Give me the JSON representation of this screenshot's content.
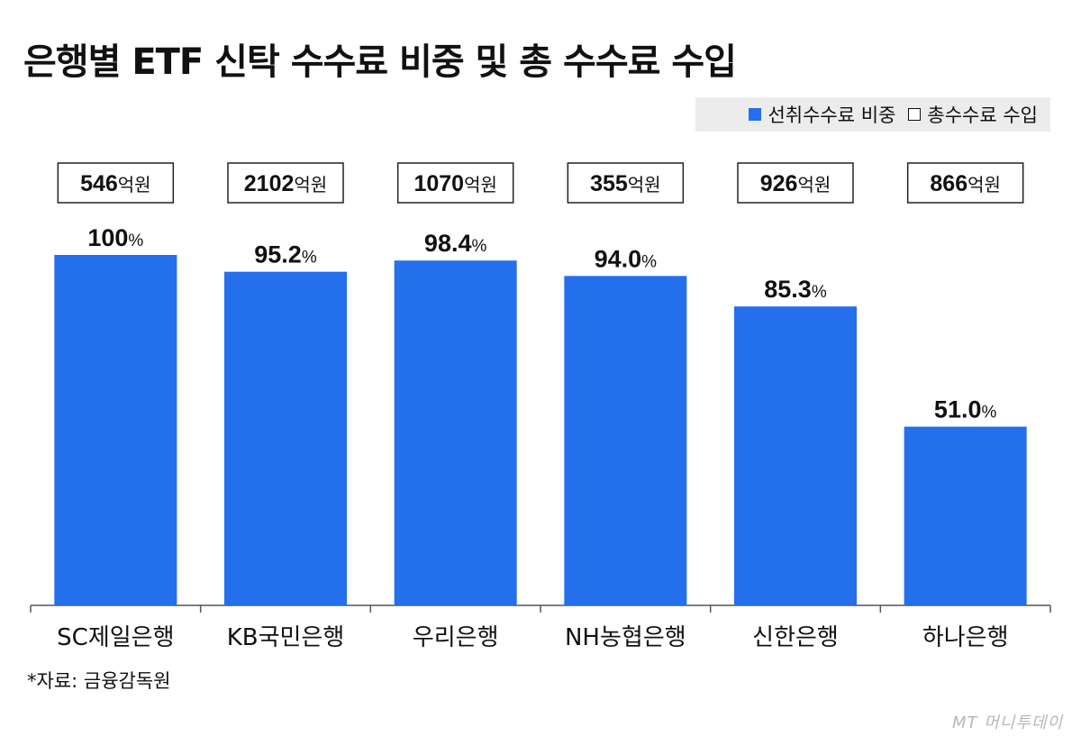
{
  "title": "은행별 ETF 신탁 수수료 비중 및 총 수수료 수입",
  "legend": [
    {
      "label": "선취수수료 비중",
      "style": "filled",
      "color": "#236fec"
    },
    {
      "label": "총수수료 수입",
      "style": "outline",
      "color": "#ffffff"
    }
  ],
  "source": "*자료: 금융감독원",
  "watermark": "MT 머니투데이",
  "chart_data": {
    "type": "bar",
    "title": "은행별 ETF 신탁 수수료 비중 및 총 수수료 수입",
    "categories": [
      "SC제일은행",
      "KB국민은행",
      "우리은행",
      "NH농협은행",
      "신한은행",
      "하나은행"
    ],
    "series": [
      {
        "name": "선취수수료 비중",
        "values": [
          100,
          95.2,
          98.4,
          94.0,
          85.3,
          51.0
        ],
        "labels": [
          "100",
          "95.2",
          "98.4",
          "94.0",
          "85.3",
          "51.0"
        ],
        "unit": "%",
        "color": "#236fec"
      },
      {
        "name": "총수수료 수입",
        "values": [
          546,
          2102,
          1070,
          355,
          926,
          866
        ],
        "unit": "억원",
        "display": "boxed-label"
      }
    ],
    "ylim": [
      0,
      100
    ],
    "xlabel": "",
    "ylabel": "",
    "grid": false,
    "legend_position": "top-right"
  }
}
